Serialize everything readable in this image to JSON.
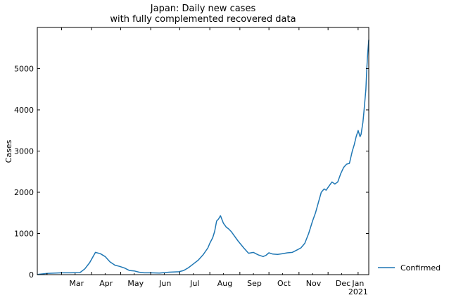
{
  "chart_data": {
    "type": "line",
    "title": [
      "Japan: Daily new cases",
      "with fully complemented recovered data"
    ],
    "xlabel": "",
    "ylabel": "Cases",
    "ylim": [
      0,
      6000
    ],
    "yticks": [
      0,
      1000,
      2000,
      3000,
      4000,
      5000
    ],
    "xlim": [
      "2020-02-05",
      "2021-01-12"
    ],
    "xticks": [
      {
        "date": "2020-03-01",
        "label": "Mar"
      },
      {
        "date": "2020-04-01",
        "label": "Apr"
      },
      {
        "date": "2020-05-01",
        "label": "May"
      },
      {
        "date": "2020-06-01",
        "label": "Jun"
      },
      {
        "date": "2020-07-01",
        "label": "Jul"
      },
      {
        "date": "2020-08-01",
        "label": "Aug"
      },
      {
        "date": "2020-09-01",
        "label": "Sep"
      },
      {
        "date": "2020-10-01",
        "label": "Oct"
      },
      {
        "date": "2020-11-01",
        "label": "Nov"
      },
      {
        "date": "2020-12-01",
        "label": "Dec"
      },
      {
        "date": "2021-01-01",
        "label": "Jan\n2021"
      }
    ],
    "grid": false,
    "legend": "outside-right-bottom",
    "color": "#1f77b4",
    "series": [
      {
        "name": "Confirmed",
        "x": [
          "2020-02-05",
          "2020-02-15",
          "2020-03-01",
          "2020-03-10",
          "2020-03-20",
          "2020-03-25",
          "2020-03-30",
          "2020-04-05",
          "2020-04-10",
          "2020-04-15",
          "2020-04-20",
          "2020-04-25",
          "2020-04-30",
          "2020-05-05",
          "2020-05-10",
          "2020-05-15",
          "2020-05-20",
          "2020-05-25",
          "2020-06-01",
          "2020-06-10",
          "2020-06-20",
          "2020-06-30",
          "2020-07-05",
          "2020-07-10",
          "2020-07-15",
          "2020-07-20",
          "2020-07-25",
          "2020-07-30",
          "2020-08-01",
          "2020-08-04",
          "2020-08-06",
          "2020-08-08",
          "2020-08-10",
          "2020-08-12",
          "2020-08-15",
          "2020-08-18",
          "2020-08-20",
          "2020-08-23",
          "2020-08-26",
          "2020-08-30",
          "2020-09-05",
          "2020-09-10",
          "2020-09-15",
          "2020-09-20",
          "2020-09-25",
          "2020-09-28",
          "2020-10-01",
          "2020-10-05",
          "2020-10-10",
          "2020-10-15",
          "2020-10-20",
          "2020-10-25",
          "2020-10-30",
          "2020-11-03",
          "2020-11-07",
          "2020-11-11",
          "2020-11-15",
          "2020-11-18",
          "2020-11-21",
          "2020-11-24",
          "2020-11-27",
          "2020-11-29",
          "2020-12-02",
          "2020-12-05",
          "2020-12-08",
          "2020-12-11",
          "2020-12-14",
          "2020-12-17",
          "2020-12-20",
          "2020-12-23",
          "2020-12-26",
          "2020-12-28",
          "2020-12-30",
          "2021-01-01",
          "2021-01-03",
          "2021-01-04",
          "2021-01-06",
          "2021-01-07",
          "2021-01-09",
          "2021-01-10",
          "2021-01-11",
          "2021-01-12"
        ],
        "y": [
          5,
          30,
          45,
          45,
          50,
          140,
          290,
          540,
          510,
          440,
          310,
          230,
          200,
          160,
          100,
          90,
          60,
          45,
          45,
          40,
          60,
          70,
          100,
          170,
          260,
          350,
          480,
          650,
          760,
          900,
          1050,
          1300,
          1350,
          1430,
          1250,
          1150,
          1120,
          1050,
          950,
          820,
          650,
          520,
          540,
          480,
          440,
          470,
          530,
          500,
          490,
          510,
          530,
          540,
          600,
          650,
          760,
          1000,
          1300,
          1500,
          1750,
          2000,
          2080,
          2050,
          2150,
          2250,
          2200,
          2250,
          2450,
          2600,
          2680,
          2700,
          3000,
          3150,
          3350,
          3500,
          3350,
          3400,
          3700,
          3950,
          4500,
          5000,
          5400,
          5700
        ]
      }
    ]
  }
}
